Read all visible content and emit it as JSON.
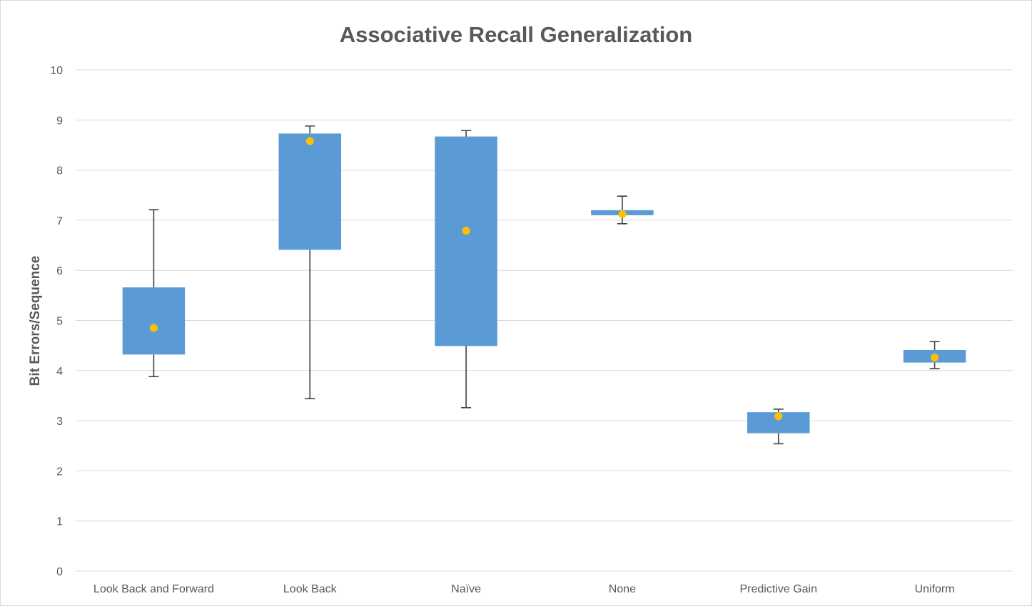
{
  "chart_data": {
    "type": "box",
    "title": "Associative Recall Generalization",
    "xlabel": "",
    "ylabel": "Bit Errors/Sequence",
    "ylim": [
      0,
      10
    ],
    "yticks": [
      "0",
      "1",
      "2",
      "3",
      "4",
      "5",
      "6",
      "7",
      "8",
      "9",
      "10"
    ],
    "grid": true,
    "legend": "none",
    "colors": {
      "box": "#5b9bd5",
      "mean": "#ffc000",
      "whisker": "#404040",
      "grid": "#d9d9d9",
      "text": "#595959"
    },
    "categories": [
      "Look Back and Forward",
      "Look Back",
      "Naïve",
      "None",
      "Predictive Gain",
      "Uniform"
    ],
    "boxes": [
      {
        "min": 3.88,
        "q1": 4.32,
        "q3": 5.66,
        "max": 7.21,
        "mean": 4.85
      },
      {
        "min": 3.44,
        "q1": 6.41,
        "q3": 8.73,
        "max": 8.88,
        "mean": 8.58
      },
      {
        "min": 3.26,
        "q1": 4.49,
        "q3": 8.67,
        "max": 8.79,
        "mean": 6.79
      },
      {
        "min": 6.93,
        "q1": 7.1,
        "q3": 7.2,
        "max": 7.48,
        "mean": 7.12
      },
      {
        "min": 2.54,
        "q1": 2.75,
        "q3": 3.17,
        "max": 3.23,
        "mean": 3.09
      },
      {
        "min": 4.04,
        "q1": 4.16,
        "q3": 4.41,
        "max": 4.58,
        "mean": 4.26
      }
    ]
  }
}
